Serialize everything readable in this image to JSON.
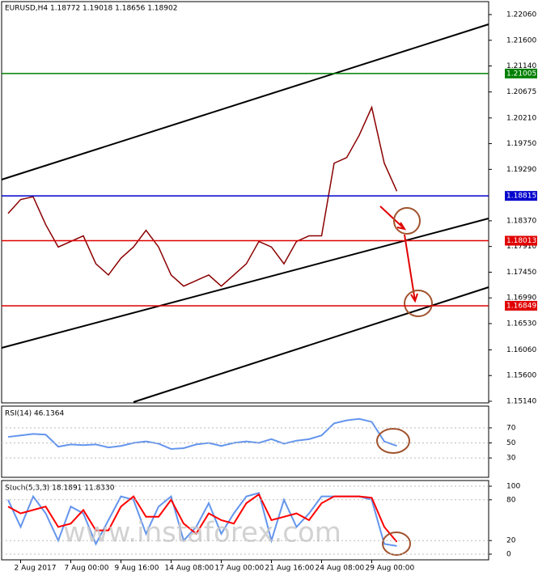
{
  "chart_data": [
    {
      "type": "line",
      "title": "EURUSD,H4  1.18772 1.19018 1.18656 1.18902",
      "color": "#8b0000",
      "values": [
        1.185,
        1.1875,
        1.188,
        1.183,
        1.179,
        1.18,
        1.181,
        1.176,
        1.174,
        1.177,
        1.179,
        1.182,
        1.179,
        1.174,
        1.172,
        1.173,
        1.174,
        1.172,
        1.174,
        1.176,
        1.18,
        1.179,
        1.176,
        1.18,
        1.181,
        1.181,
        1.194,
        1.195,
        1.199,
        1.204,
        1.194,
        1.189
      ],
      "ylim": [
        1.1514,
        1.2206
      ],
      "yticks": [
        {
          "value": 1.1514,
          "label": "1.15140"
        },
        {
          "value": 1.156,
          "label": "1.15600"
        },
        {
          "value": 1.1606,
          "label": "1.16060"
        },
        {
          "value": 1.1653,
          "label": "1.16530"
        },
        {
          "value": 1.1699,
          "label": "1.16990"
        },
        {
          "value": 1.1745,
          "label": "1.17450"
        },
        {
          "value": 1.1791,
          "label": "1.17910"
        },
        {
          "value": 1.1837,
          "label": "1.18370"
        },
        {
          "value": 1.1929,
          "label": "1.19290"
        },
        {
          "value": 1.1975,
          "label": "1.19750"
        },
        {
          "value": 1.2021,
          "label": "1.20210"
        },
        {
          "value": 1.20675,
          "label": "1.20675"
        },
        {
          "value": 1.2114,
          "label": "1.21140"
        },
        {
          "value": 1.216,
          "label": "1.21600"
        },
        {
          "value": 1.2206,
          "label": "1.22060"
        }
      ],
      "levels": [
        {
          "value": 1.21005,
          "color": "#008000"
        },
        {
          "value": 1.18815,
          "color": "#0000cc"
        },
        {
          "value": 1.18013,
          "color": "#e00000"
        },
        {
          "value": 1.16849,
          "color": "#e00000"
        }
      ]
    },
    {
      "type": "line",
      "title": "RSI(14) 46.1364",
      "color": "#6495ed",
      "values": [
        58,
        60,
        62,
        61,
        45,
        48,
        47,
        48,
        44,
        46,
        50,
        52,
        49,
        42,
        43,
        48,
        50,
        46,
        50,
        52,
        50,
        55,
        49,
        53,
        55,
        60,
        76,
        80,
        82,
        78,
        52,
        46
      ],
      "ylim": [
        0,
        100
      ],
      "yticks": [
        30,
        50,
        70
      ]
    },
    {
      "type": "line",
      "title": "Stoch(5,3,3) 18.1891 11.8330",
      "categories": [
        null,
        "2 Aug 2017",
        null,
        null,
        null,
        "7 Aug 00:00",
        null,
        null,
        null,
        "9 Aug 16:00",
        null,
        null,
        null,
        "14 Aug 08:00",
        null,
        null,
        null,
        "17 Aug 00:00",
        null,
        null,
        null,
        "21 Aug 16:00",
        null,
        null,
        null,
        "24 Aug 08:00",
        null,
        null,
        null,
        "29 Aug 00:00",
        null,
        null
      ],
      "series": [
        {
          "color": "#6495ed",
          "values": [
            80,
            40,
            85,
            60,
            20,
            70,
            60,
            15,
            50,
            85,
            80,
            30,
            70,
            85,
            20,
            40,
            75,
            30,
            60,
            85,
            90,
            20,
            80,
            40,
            60,
            85,
            85,
            85,
            85,
            80,
            15,
            12
          ]
        },
        {
          "color": "#ff0000",
          "values": [
            70,
            60,
            65,
            70,
            40,
            45,
            65,
            35,
            35,
            70,
            85,
            55,
            55,
            80,
            45,
            30,
            60,
            50,
            45,
            75,
            88,
            50,
            55,
            60,
            50,
            75,
            85,
            85,
            85,
            83,
            40,
            18
          ]
        }
      ],
      "ylim": [
        0,
        100
      ],
      "yticks": [
        0,
        20,
        80,
        100
      ]
    }
  ],
  "watermark": "www.instaforex.com"
}
